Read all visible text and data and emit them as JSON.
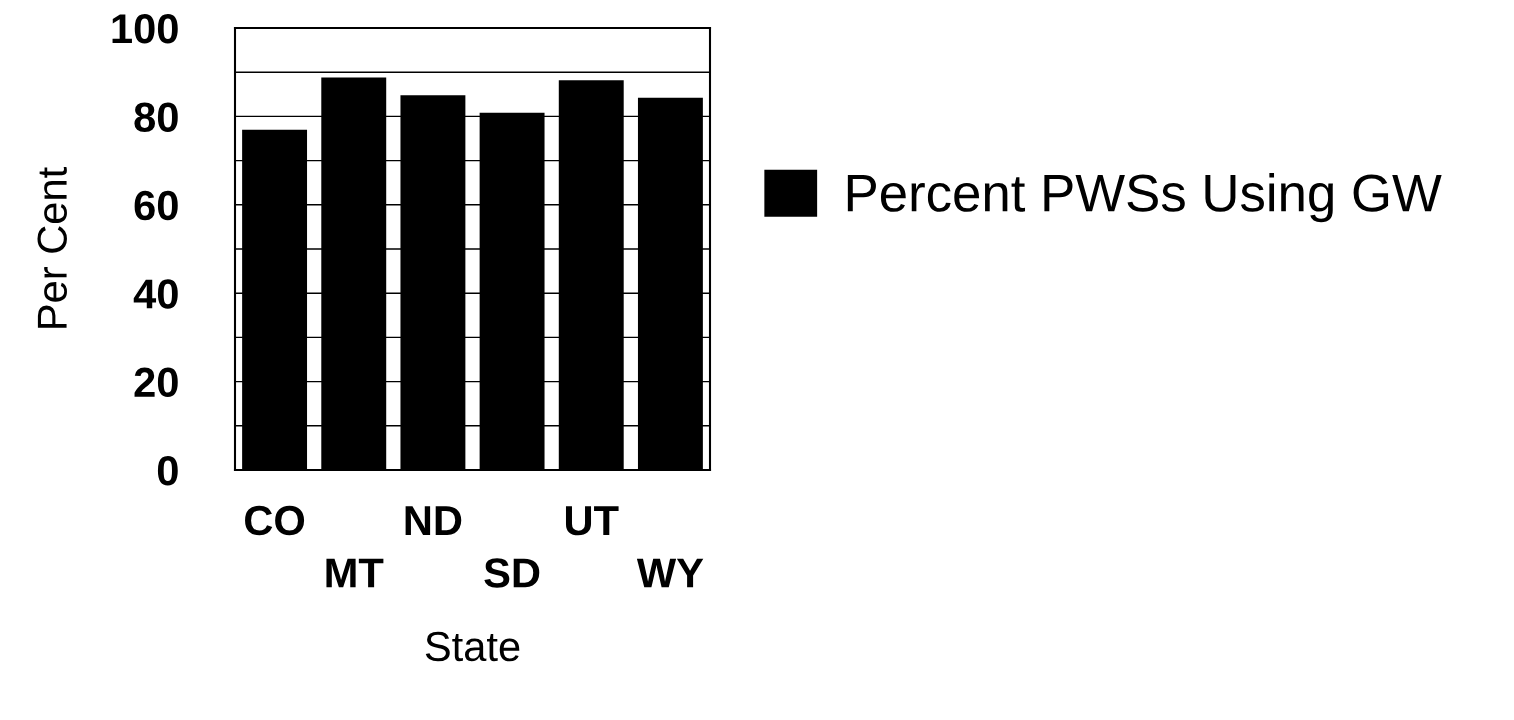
{
  "chart_data": {
    "type": "bar",
    "xlabel": "State",
    "ylabel": "Per Cent",
    "categories": [
      "CO",
      "MT",
      "ND",
      "SD",
      "UT",
      "WY"
    ],
    "series": [
      {
        "name": "Percent PWSs Using GW",
        "color": "#000000",
        "values": [
          77,
          88.8,
          84.8,
          80.8,
          88.2,
          84.2
        ]
      }
    ],
    "ylim": [
      0,
      100
    ],
    "yticks": [
      0,
      {
        "value": 10,
        "label": null
      },
      20,
      {
        "value": 30,
        "label": null
      },
      40,
      {
        "value": 50,
        "label": null
      },
      60,
      {
        "value": 70,
        "label": null
      },
      80,
      {
        "value": 90,
        "label": null
      },
      100
    ],
    "grid": "y",
    "legend": "right"
  }
}
